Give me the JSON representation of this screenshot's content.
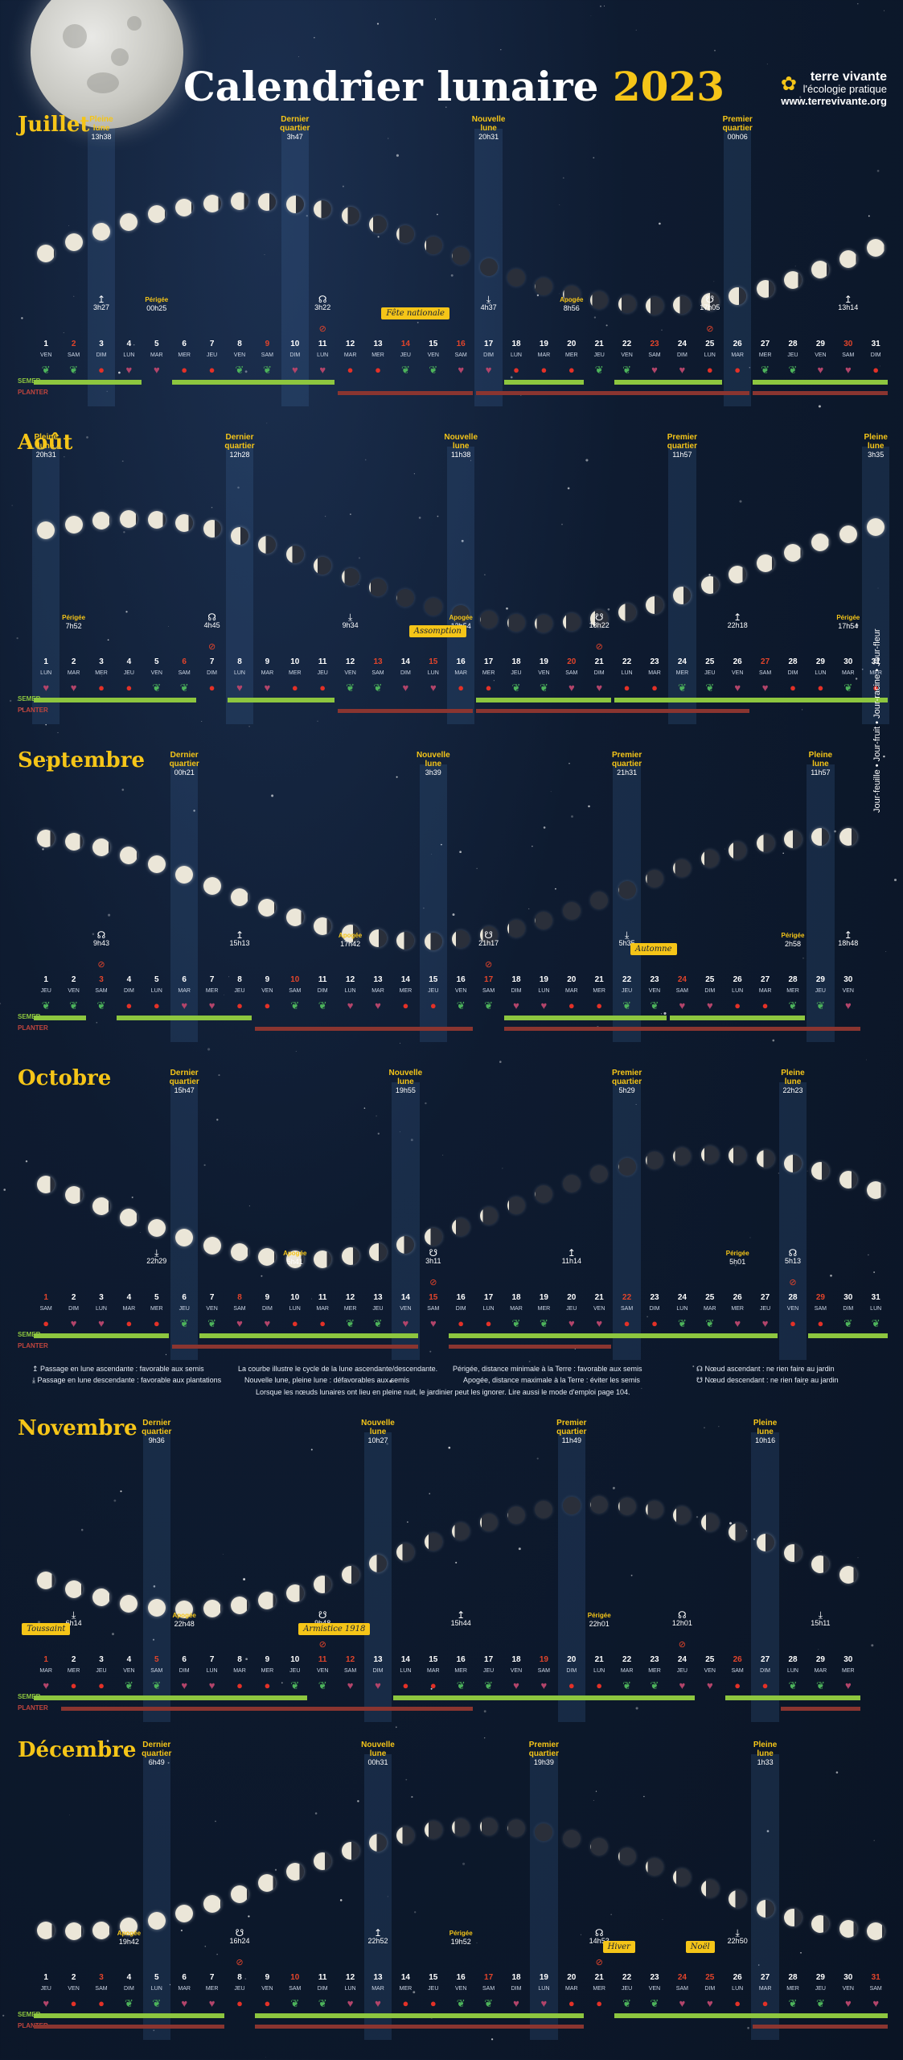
{
  "header": {
    "title": "Calendrier lunaire",
    "year": "2023",
    "brand_name": "terre vivante",
    "brand_tagline": "l'écologie pratique",
    "brand_url": "www.terrevivante.org",
    "brand_icon": "sunflower-icon"
  },
  "labels": {
    "semer": "SEMER",
    "planter": "PLANTER",
    "phase_names": {
      "pleine": [
        "Pleine",
        "lune"
      ],
      "dernier": [
        "Dernier",
        "quartier"
      ],
      "nouvelle": [
        "Nouvelle",
        "lune"
      ],
      "premier": [
        "Premier",
        "quartier"
      ]
    },
    "perigee": "Périgée",
    "apogee": "Apogée"
  },
  "colors": {
    "accent": "#f5c518",
    "semer": "#8dc63f",
    "planter": "#8a3530",
    "weekend": "#e2442b"
  },
  "months": [
    {
      "name": "Juillet",
      "days": 31,
      "start_dow": 5,
      "sundays_red": [
        2,
        9,
        16,
        23,
        30
      ],
      "holidays": [
        14
      ],
      "phases": [
        {
          "type": "pleine",
          "day": 3,
          "time": "13h38"
        },
        {
          "type": "dernier",
          "day": 10,
          "time": "3h47"
        },
        {
          "type": "nouvelle",
          "day": 17,
          "time": "20h31"
        },
        {
          "type": "premier",
          "day": 26,
          "time": "00h06"
        }
      ],
      "events": [
        {
          "day": 14,
          "text": "Fête nationale"
        }
      ],
      "marks": [
        {
          "day": 3,
          "sym": "↥",
          "time": "3h27"
        },
        {
          "day": 5,
          "sym": "Périgée",
          "time": "00h25"
        },
        {
          "day": 11,
          "sym": "☊",
          "time": "3h22"
        },
        {
          "day": 17,
          "sym": "⤓",
          "time": "4h37"
        },
        {
          "day": 20,
          "sym": "Apogée",
          "time": "8h56"
        },
        {
          "day": 25,
          "sym": "☋",
          "time": "17h05"
        },
        {
          "day": 30,
          "sym": "↥",
          "time": "13h14"
        }
      ],
      "signs": "LLFRRFFLLRRFFLLRRFFFLLRRFFLLRRF",
      "semer": [
        [
          1,
          4
        ],
        [
          6,
          11
        ],
        [
          18,
          20
        ],
        [
          22,
          25
        ],
        [
          27,
          31
        ]
      ],
      "planter": [
        [
          12,
          16
        ],
        [
          17,
          26
        ],
        [
          27,
          31
        ]
      ],
      "forbid": [
        11,
        25
      ]
    },
    {
      "name": "Août",
      "days": 31,
      "start_dow": 1,
      "sundays_red": [
        6,
        13,
        20,
        27
      ],
      "holidays": [
        15
      ],
      "phases": [
        {
          "type": "pleine",
          "day": 1,
          "time": "20h31"
        },
        {
          "type": "dernier",
          "day": 8,
          "time": "12h28"
        },
        {
          "type": "nouvelle",
          "day": 16,
          "time": "11h38"
        },
        {
          "type": "premier",
          "day": 24,
          "time": "11h57"
        },
        {
          "type": "pleine",
          "day": 31,
          "time": "3h35"
        }
      ],
      "events": [
        {
          "day": 15,
          "text": "Assomption"
        }
      ],
      "marks": [
        {
          "day": 2,
          "sym": "Périgée",
          "time": "7h52"
        },
        {
          "day": 7,
          "sym": "☊",
          "time": "4h45"
        },
        {
          "day": 12,
          "sym": "⤓",
          "time": "9h34"
        },
        {
          "day": 16,
          "sym": "Apogée",
          "time": "13h54"
        },
        {
          "day": 21,
          "sym": "☋",
          "time": "18h22"
        },
        {
          "day": 26,
          "sym": "↥",
          "time": "22h18"
        },
        {
          "day": 30,
          "sym": "Périgée",
          "time": "17h54"
        }
      ],
      "signs": "RRFFLLFRRFFLLRRFFLLRRFFLLRRFFLF",
      "semer": [
        [
          1,
          6
        ],
        [
          8,
          11
        ],
        [
          17,
          21
        ],
        [
          22,
          31
        ]
      ],
      "planter": [
        [
          12,
          16
        ],
        [
          17,
          26
        ]
      ],
      "forbid": [
        7,
        21
      ]
    },
    {
      "name": "Septembre",
      "days": 30,
      "start_dow": 4,
      "sundays_red": [
        3,
        10,
        17,
        24
      ],
      "holidays": [],
      "phases": [
        {
          "type": "dernier",
          "day": 6,
          "time": "00h21"
        },
        {
          "type": "nouvelle",
          "day": 15,
          "time": "3h39"
        },
        {
          "type": "premier",
          "day": 22,
          "time": "21h31"
        },
        {
          "type": "pleine",
          "day": 29,
          "time": "11h57"
        }
      ],
      "events": [
        {
          "day": 23,
          "text": "Automne"
        }
      ],
      "marks": [
        {
          "day": 3,
          "sym": "☊",
          "time": "9h43"
        },
        {
          "day": 8,
          "sym": "↥",
          "time": "15h13"
        },
        {
          "day": 12,
          "sym": "Apogée",
          "time": "17h42"
        },
        {
          "day": 17,
          "sym": "☋",
          "time": "21h17"
        },
        {
          "day": 22,
          "sym": "⤓",
          "time": "5h35"
        },
        {
          "day": 28,
          "sym": "Périgée",
          "time": "2h58"
        },
        {
          "day": 30,
          "sym": "↥",
          "time": "18h48"
        }
      ],
      "signs": "LLLFFRRFFLLRRFFLLRRFFLLRRFFLLR",
      "semer": [
        [
          1,
          2
        ],
        [
          4,
          8
        ],
        [
          18,
          23
        ],
        [
          24,
          28
        ]
      ],
      "planter": [
        [
          9,
          16
        ],
        [
          18,
          30
        ]
      ],
      "forbid": [
        3,
        17
      ]
    },
    {
      "name": "Octobre",
      "days": 31,
      "start_dow": 6,
      "sundays_red": [
        1,
        8,
        15,
        22,
        29
      ],
      "holidays": [],
      "phases": [
        {
          "type": "dernier",
          "day": 6,
          "time": "15h47"
        },
        {
          "type": "nouvelle",
          "day": 14,
          "time": "19h55"
        },
        {
          "type": "premier",
          "day": 22,
          "time": "5h29"
        },
        {
          "type": "pleine",
          "day": 28,
          "time": "22h23"
        }
      ],
      "events": [],
      "marks": [
        {
          "day": 5,
          "sym": "⤓",
          "time": "22h29"
        },
        {
          "day": 10,
          "sym": "Apogée",
          "time": "5h41"
        },
        {
          "day": 15,
          "sym": "☋",
          "time": "3h11"
        },
        {
          "day": 20,
          "sym": "↥",
          "time": "11h14"
        },
        {
          "day": 26,
          "sym": "Périgée",
          "time": "5h01"
        },
        {
          "day": 28,
          "sym": "☊",
          "time": "5h13"
        }
      ],
      "signs": "FRRFFLLRRFFLLRRFFLLRRFFLLRRFFLL",
      "semer": [
        [
          1,
          5
        ],
        [
          7,
          14
        ],
        [
          16,
          27
        ],
        [
          29,
          31
        ]
      ],
      "planter": [
        [
          6,
          14
        ],
        [
          16,
          21
        ]
      ],
      "forbid": [
        15,
        28
      ]
    },
    {
      "name": "Novembre",
      "days": 30,
      "start_dow": 2,
      "sundays_red": [
        5,
        12,
        19,
        26
      ],
      "holidays": [
        1,
        11
      ],
      "phases": [
        {
          "type": "dernier",
          "day": 5,
          "time": "9h36"
        },
        {
          "type": "nouvelle",
          "day": 13,
          "time": "10h27"
        },
        {
          "type": "premier",
          "day": 20,
          "time": "11h49"
        },
        {
          "type": "pleine",
          "day": 27,
          "time": "10h16"
        }
      ],
      "events": [
        {
          "day": 1,
          "text": "Toussaint"
        },
        {
          "day": 11,
          "text": "Armistice 1918"
        }
      ],
      "marks": [
        {
          "day": 2,
          "sym": "⤓",
          "time": "6h14"
        },
        {
          "day": 6,
          "sym": "Apogée",
          "time": "22h48"
        },
        {
          "day": 11,
          "sym": "☋",
          "time": "9h48"
        },
        {
          "day": 16,
          "sym": "↥",
          "time": "15h44"
        },
        {
          "day": 21,
          "sym": "Périgée",
          "time": "22h01"
        },
        {
          "day": 24,
          "sym": "☊",
          "time": "12h01"
        },
        {
          "day": 29,
          "sym": "⤓",
          "time": "15h11"
        }
      ],
      "signs": "RFFLLRRFFLLRRFFLLRRFFLLRRFFLLR",
      "semer": [
        [
          1,
          10
        ],
        [
          14,
          24
        ],
        [
          26,
          30
        ]
      ],
      "planter": [
        [
          2,
          16
        ],
        [
          28,
          30
        ]
      ],
      "forbid": [
        11,
        24
      ]
    },
    {
      "name": "Décembre",
      "days": 31,
      "start_dow": 4,
      "sundays_red": [
        3,
        10,
        17,
        24,
        31
      ],
      "holidays": [
        25
      ],
      "phases": [
        {
          "type": "dernier",
          "day": 5,
          "time": "6h49"
        },
        {
          "type": "nouvelle",
          "day": 13,
          "time": "00h31"
        },
        {
          "type": "premier",
          "day": 19,
          "time": "19h39"
        },
        {
          "type": "pleine",
          "day": 27,
          "time": "1h33"
        }
      ],
      "events": [
        {
          "day": 22,
          "text": "Hiver"
        },
        {
          "day": 25,
          "text": "Noël"
        }
      ],
      "marks": [
        {
          "day": 4,
          "sym": "Apogée",
          "time": "19h42"
        },
        {
          "day": 8,
          "sym": "☋",
          "time": "16h24"
        },
        {
          "day": 13,
          "sym": "↥",
          "time": "22h52"
        },
        {
          "day": 16,
          "sym": "Périgée",
          "time": "19h52"
        },
        {
          "day": 21,
          "sym": "☊",
          "time": "14h53"
        },
        {
          "day": 26,
          "sym": "⤓",
          "time": "22h50"
        }
      ],
      "signs": "RFFLLRRFFLLRRFFLLRRFFLLRRFFLLRR",
      "semer": [
        [
          1,
          7
        ],
        [
          9,
          20
        ],
        [
          22,
          31
        ]
      ],
      "planter": [
        [
          1,
          7
        ],
        [
          9,
          20
        ],
        [
          27,
          31
        ]
      ],
      "forbid": [
        8,
        21
      ]
    }
  ],
  "legend": {
    "asc": "Passage en lune ascendante : favorable aux semis",
    "desc": "Passage en lune descendante : favorable aux plantations",
    "curve": "La courbe illustre le cycle de la lune ascendante/descendante.",
    "nl_pl": "Nouvelle lune, pleine lune : défavorables aux semis",
    "perigee": "Périgée, distance minimale à la Terre : favorable aux semis",
    "apogee": "Apogée, distance maximale à la Terre : éviter les semis",
    "node_asc": "Nœud ascendant : ne rien faire au jardin",
    "node_desc": "Nœud descendant : ne rien faire au jardin",
    "footer": "Lorsque les nœuds lunaires ont lieu en pleine nuit, le jardinier peut les ignorer. Lire aussi le mode d'emploi page 104.",
    "side": "Jour-feuille  •  Jour-fruit  •  Jour-racine  •  Jour-fleur"
  },
  "dow_names": [
    "LUN",
    "MAR",
    "MER",
    "JEU",
    "VEN",
    "SAM",
    "DIM"
  ]
}
